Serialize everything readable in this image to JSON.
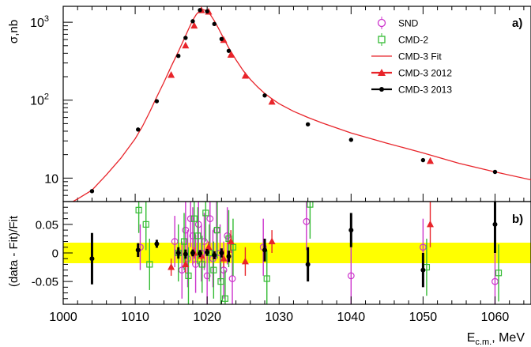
{
  "chart_data": [
    {
      "type": "line",
      "panel_label": "a)",
      "ylabel": "σ,nb",
      "yscale": "log",
      "ylim": [
        5,
        1600
      ],
      "xlim": [
        1000,
        1065
      ],
      "y_ticks": [
        {
          "v": 10,
          "base": "10",
          "exp": ""
        },
        {
          "v": 100,
          "base": "10",
          "exp": "2"
        },
        {
          "v": 1000,
          "base": "10",
          "exp": "3"
        }
      ],
      "legend": {
        "position": "top-right",
        "entries": [
          {
            "label": "SND",
            "marker": "circle-open",
            "color": "#cc33cc"
          },
          {
            "label": "CMD-2",
            "marker": "square-open",
            "color": "#33bb33"
          },
          {
            "label": "CMD-3 Fit",
            "marker": "line",
            "color": "#e8242a"
          },
          {
            "label": "CMD-3 2012",
            "marker": "triangle",
            "color": "#e8242a"
          },
          {
            "label": "CMD-3 2013",
            "marker": "dot",
            "color": "#000000"
          }
        ]
      },
      "series": [
        {
          "name": "CMD-3 Fit",
          "color": "#e8242a",
          "x": [
            1001,
            1002,
            1004,
            1006,
            1008,
            1010,
            1011,
            1012,
            1013,
            1014,
            1015,
            1016,
            1016.5,
            1017,
            1017.5,
            1018,
            1018.5,
            1019,
            1019.46,
            1020,
            1020.5,
            1021,
            1021.5,
            1022,
            1022.5,
            1023,
            1024,
            1025,
            1026,
            1027,
            1028,
            1029,
            1030,
            1032,
            1034,
            1036,
            1040,
            1045,
            1050,
            1055,
            1060,
            1065
          ],
          "y": [
            4.8,
            5.4,
            7,
            11,
            18,
            32,
            46,
            70,
            110,
            170,
            270,
            420,
            530,
            670,
            850,
            1060,
            1260,
            1410,
            1450,
            1390,
            1230,
            1040,
            860,
            700,
            570,
            470,
            330,
            240,
            185,
            148,
            122,
            104,
            90,
            72,
            60,
            51,
            38,
            28,
            21,
            15.5,
            12,
            9.5
          ]
        },
        {
          "name": "CMD-3 2012",
          "color": "#e8242a",
          "x": [
            1015,
            1017,
            1018.2,
            1019.2,
            1020.2,
            1022.3,
            1023.3,
            1025.3,
            1029,
            1051
          ],
          "y": [
            210,
            500,
            900,
            1420,
            1360,
            590,
            380,
            205,
            95,
            16.5
          ]
        },
        {
          "name": "CMD-3 2013",
          "color": "#000000",
          "x": [
            1004,
            1010.4,
            1013,
            1016,
            1017,
            1018,
            1019,
            1020,
            1021,
            1022,
            1023,
            1028,
            1034,
            1040,
            1050,
            1060
          ],
          "y": [
            6.8,
            42,
            97,
            370,
            630,
            1030,
            1430,
            1380,
            950,
            610,
            430,
            115,
            49,
            31,
            17,
            12
          ]
        }
      ]
    },
    {
      "type": "scatter",
      "panel_label": "b)",
      "ylabel": "(data - Fit)/Fit",
      "xlabel_main": "E",
      "xlabel_sub": "c.m.",
      "xlabel_tail": ", MeV",
      "ylim": [
        -0.09,
        0.09
      ],
      "xlim": [
        1000,
        1065
      ],
      "band": {
        "from": -0.018,
        "to": 0.018,
        "color": "#ffff00"
      },
      "x_ticks": [
        "1000",
        "1010",
        "1020",
        "1030",
        "1040",
        "1050",
        "1060"
      ],
      "y_ticks": [
        "0.05",
        "0",
        "-0.05"
      ],
      "series": [
        {
          "name": "SND",
          "color": "#cc33cc",
          "x": [
            1010.7,
            1015.5,
            1016.5,
            1017,
            1017.3,
            1017.7,
            1018,
            1018.4,
            1018.8,
            1019.2,
            1019.6,
            1020,
            1020.4,
            1020.8,
            1021.3,
            1021.8,
            1022.3,
            1022.8,
            1023.5,
            1027.8,
            1033.8,
            1040,
            1050,
            1060
          ],
          "y": [
            0.01,
            0.02,
            -0.03,
            0.04,
            -0.01,
            0.06,
            0.03,
            -0.02,
            0.05,
            0.0,
            0.02,
            -0.04,
            0.06,
            -0.01,
            0.04,
            0.0,
            -0.03,
            0.03,
            -0.045,
            0.01,
            0.055,
            -0.04,
            0.01,
            -0.05
          ],
          "err": [
            0.04,
            0.045,
            0.05,
            0.05,
            0.05,
            0.05,
            0.05,
            0.05,
            0.05,
            0.05,
            0.05,
            0.05,
            0.05,
            0.05,
            0.05,
            0.05,
            0.05,
            0.05,
            0.05,
            0.05,
            0.05,
            0.05,
            0.05,
            0.05
          ]
        },
        {
          "name": "CMD-2",
          "color": "#33bb33",
          "x": [
            1010.5,
            1011.5,
            1012,
            1016,
            1016.8,
            1017.4,
            1018.2,
            1018.7,
            1019.3,
            1019.8,
            1020.3,
            1020.9,
            1021.4,
            1021.9,
            1022.5,
            1023,
            1023.6,
            1028.3,
            1034.3,
            1050.5,
            1060.5
          ],
          "y": [
            0.075,
            0.05,
            -0.02,
            0.0,
            0.02,
            -0.04,
            0.06,
            0.03,
            -0.02,
            0.07,
            0.0,
            -0.03,
            0.04,
            -0.05,
            -0.08,
            0.025,
            0.01,
            -0.045,
            0.085,
            -0.025,
            -0.035
          ],
          "err": [
            0.04,
            0.045,
            0.045,
            0.05,
            0.05,
            0.05,
            0.05,
            0.05,
            0.05,
            0.05,
            0.05,
            0.05,
            0.05,
            0.05,
            0.05,
            0.05,
            0.05,
            0.05,
            0.06,
            0.05,
            0.05
          ]
        },
        {
          "name": "CMD-3 2012",
          "color": "#e8242a",
          "x": [
            1015,
            1017,
            1018.2,
            1019.2,
            1020.2,
            1022.3,
            1023.3,
            1025.3,
            1029,
            1051
          ],
          "y": [
            -0.025,
            -0.02,
            0.0,
            -0.005,
            0.01,
            -0.01,
            0.02,
            -0.015,
            0.02,
            0.05
          ],
          "err": [
            0.015,
            0.015,
            0.01,
            0.01,
            0.01,
            0.015,
            0.02,
            0.025,
            0.02,
            0.04
          ]
        },
        {
          "name": "CMD-3 2013",
          "color": "#000000",
          "x": [
            1004,
            1010.4,
            1013,
            1016,
            1017,
            1018,
            1019,
            1020,
            1021,
            1022,
            1023,
            1028,
            1034,
            1040,
            1050,
            1060
          ],
          "y": [
            -0.01,
            0.005,
            0.016,
            0.0,
            -0.002,
            0.0,
            -0.001,
            0.001,
            -0.004,
            0.0,
            -0.006,
            0.005,
            -0.02,
            0.04,
            -0.03,
            0.05
          ],
          "err": [
            0.045,
            0.012,
            0.007,
            0.01,
            0.008,
            0.006,
            0.006,
            0.006,
            0.007,
            0.008,
            0.01,
            0.02,
            0.03,
            0.03,
            0.03,
            0.05
          ]
        }
      ]
    }
  ]
}
